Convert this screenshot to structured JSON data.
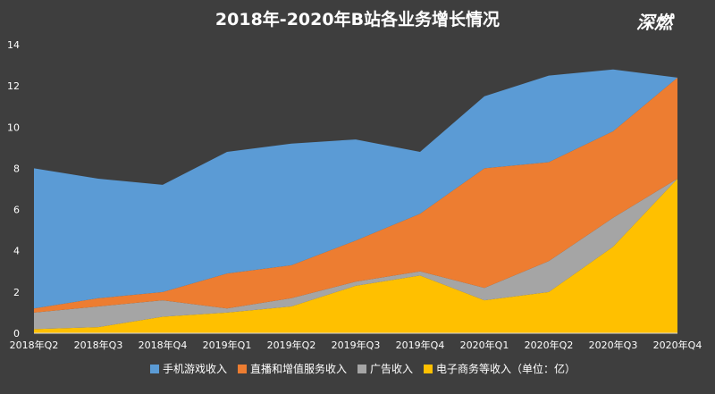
{
  "chart_data": {
    "type": "area",
    "stacked": true,
    "title": "2018年-2020年B站各业务增长情况",
    "categories": [
      "2018年Q2",
      "2018年Q3",
      "2018年Q4",
      "2019年Q1",
      "2019年Q2",
      "2019年Q3",
      "2019年Q4",
      "2020年Q1",
      "2020年Q2",
      "2020年Q3",
      "2020年Q4"
    ],
    "ylim": [
      0,
      14
    ],
    "yticks": [
      "0",
      "2",
      "4",
      "6",
      "8",
      "10",
      "12",
      "14"
    ],
    "series": [
      {
        "name": "电子商务等收入",
        "color": "#ffc000",
        "values": [
          0.2,
          0.3,
          0.8,
          1.0,
          1.3,
          2.3,
          2.8,
          1.6,
          2.0,
          4.2,
          7.5
        ]
      },
      {
        "name": "广告收入",
        "color": "#a5a5a5",
        "values": [
          0.8,
          1.0,
          0.8,
          0.2,
          0.4,
          0.2,
          0.2,
          0.6,
          1.5,
          1.4,
          0.0
        ]
      },
      {
        "name": "直播和增值服务收入",
        "color": "#ed7d31",
        "values": [
          0.2,
          0.4,
          0.4,
          1.7,
          1.6,
          2.0,
          2.8,
          5.8,
          4.8,
          4.2,
          4.9
        ]
      },
      {
        "name": "手机游戏收入",
        "color": "#5b9bd5",
        "values": [
          6.8,
          5.8,
          5.2,
          5.9,
          5.9,
          4.9,
          3.0,
          3.5,
          4.2,
          3.0,
          0.0
        ]
      }
    ],
    "legend": {
      "placement": "bottom",
      "suffix": "（单位：亿）",
      "items": [
        "手机游戏收入",
        "直播和增值服务收入",
        "广告收入",
        "电子商务等收入"
      ]
    },
    "grid": false
  },
  "watermark": {
    "text": "深燃"
  },
  "colors": {
    "background": "#3e3e3e",
    "text": "#ffffff"
  }
}
